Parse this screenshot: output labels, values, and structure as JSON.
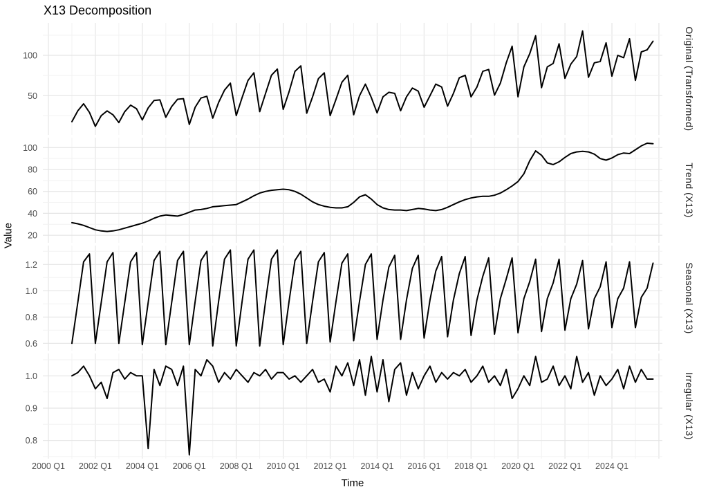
{
  "title": "X13 Decomposition",
  "chart_data": {
    "type": "line",
    "title": "X13 Decomposition",
    "xlabel": "Time",
    "ylabel": "Value",
    "x_unit": "quarterly",
    "x_start": "2001 Q1",
    "x_end": "2025 Q4",
    "grid": true,
    "legend": false,
    "line_color": "#000000",
    "gridline_color": "#e8e8e8",
    "tick_label_color": "#4d4d4d",
    "x_tick_labels": [
      "2000 Q1",
      "2002 Q1",
      "2004 Q1",
      "2006 Q1",
      "2008 Q1",
      "2010 Q1",
      "2012 Q1",
      "2014 Q1",
      "2016 Q1",
      "2018 Q1",
      "2020 Q1",
      "2022 Q1",
      "2024 Q1"
    ],
    "facets": [
      {
        "label": "Original (Transformed)",
        "scale": "log10",
        "y_ticks": [
          100,
          50
        ],
        "y_tick_labels": [
          "100",
          "50"
        ],
        "values": [
          32,
          38.5,
          43.5,
          37.5,
          29.5,
          35.5,
          38.5,
          36,
          31.5,
          38,
          42.5,
          40,
          33,
          40.5,
          46,
          46.5,
          34.5,
          41.5,
          47,
          47.5,
          30.5,
          41,
          48,
          49.5,
          34,
          44.5,
          55,
          62,
          35.5,
          48.5,
          65,
          74,
          38,
          52,
          71,
          79,
          39.5,
          53.5,
          76,
          83.5,
          37,
          49,
          67,
          74,
          35.5,
          47,
          63,
          71,
          36,
          50,
          61,
          48.5,
          37.2,
          49,
          53,
          52,
          38.6,
          49,
          57,
          54,
          41,
          50,
          61,
          58,
          41.8,
          52,
          68,
          71,
          49,
          58,
          76,
          78.5,
          50.5,
          62,
          88,
          117,
          49,
          82,
          103,
          140,
          57.4,
          82,
          87,
          122,
          67.3,
          86,
          98,
          152,
          68.6,
          88,
          90,
          124,
          69.9,
          100,
          96,
          133,
          65,
          106,
          110,
          127.5
        ]
      },
      {
        "label": "Trend (X13)",
        "scale": "linear",
        "y_ticks": [
          100,
          80,
          60,
          40,
          20
        ],
        "y_tick_labels": [
          "100",
          "80",
          "60",
          "40",
          "20"
        ],
        "values": [
          31.5,
          30.5,
          29,
          27,
          25,
          24,
          23.5,
          24,
          25,
          26.5,
          28,
          29.5,
          31,
          33,
          35.5,
          37.5,
          38.5,
          38,
          37.5,
          39,
          41,
          43,
          43.5,
          44.5,
          46,
          46.5,
          47,
          47.5,
          48,
          50.5,
          53,
          56,
          58.5,
          60,
          61,
          61.5,
          62,
          61.5,
          60,
          57.5,
          54,
          50.5,
          48,
          46.5,
          45.5,
          45,
          45,
          46,
          50,
          55,
          57,
          53,
          48,
          45,
          43.5,
          43,
          43,
          42.5,
          43.5,
          44.5,
          44,
          43,
          42.5,
          43.5,
          45.5,
          48,
          50.5,
          52.5,
          54,
          55,
          55.5,
          55.5,
          56.5,
          58.5,
          61.5,
          65,
          69,
          76,
          88,
          97,
          93,
          86,
          84.5,
          87,
          91,
          94.5,
          96,
          96.5,
          96,
          94,
          90,
          88.5,
          90.5,
          93.5,
          95,
          94.5,
          98,
          101.5,
          104,
          103.5
        ]
      },
      {
        "label": "Seasonal (X13)",
        "scale": "linear",
        "y_ticks": [
          1.2,
          1.0,
          0.8,
          0.6
        ],
        "y_tick_labels": [
          "1.2",
          "1.0",
          "0.8",
          "0.6"
        ],
        "values": [
          0.6,
          0.91,
          1.22,
          1.28,
          0.6,
          0.91,
          1.22,
          1.29,
          0.6,
          0.91,
          1.22,
          1.29,
          0.59,
          0.91,
          1.23,
          1.3,
          0.59,
          0.91,
          1.23,
          1.3,
          0.59,
          0.92,
          1.23,
          1.3,
          0.58,
          0.92,
          1.24,
          1.31,
          0.58,
          0.92,
          1.24,
          1.31,
          0.58,
          0.92,
          1.24,
          1.31,
          0.59,
          0.92,
          1.23,
          1.3,
          0.6,
          0.92,
          1.22,
          1.29,
          0.61,
          0.92,
          1.21,
          1.28,
          0.62,
          0.92,
          1.2,
          1.28,
          0.63,
          0.93,
          1.18,
          1.27,
          0.63,
          0.93,
          1.17,
          1.27,
          0.64,
          0.93,
          1.15,
          1.26,
          0.65,
          0.93,
          1.13,
          1.26,
          0.66,
          0.93,
          1.11,
          1.25,
          0.67,
          0.94,
          1.09,
          1.25,
          0.68,
          0.94,
          1.07,
          1.24,
          0.69,
          0.94,
          1.06,
          1.24,
          0.7,
          0.94,
          1.05,
          1.23,
          0.71,
          0.94,
          1.03,
          1.22,
          0.72,
          0.94,
          1.02,
          1.22,
          0.72,
          0.95,
          1.02,
          1.21
        ]
      },
      {
        "label": "Irregular (X13)",
        "scale": "linear",
        "y_ticks": [
          1.0,
          0.9,
          0.8
        ],
        "y_tick_labels": [
          "1.0",
          "0.9",
          "0.8"
        ],
        "values": [
          1.0,
          1.01,
          1.03,
          1.0,
          0.96,
          0.98,
          0.93,
          1.01,
          1.02,
          0.99,
          1.01,
          1.0,
          1.0,
          0.775,
          1.02,
          0.97,
          1.03,
          1.02,
          0.97,
          1.03,
          0.755,
          1.02,
          1.0,
          1.05,
          1.03,
          0.98,
          1.01,
          0.99,
          1.02,
          1.0,
          0.98,
          1.01,
          1.0,
          1.02,
          0.99,
          1.01,
          1.01,
          0.99,
          1.0,
          0.98,
          1.0,
          1.02,
          0.98,
          0.99,
          0.95,
          1.03,
          1.0,
          1.04,
          0.97,
          1.05,
          0.94,
          1.06,
          0.95,
          1.05,
          0.92,
          1.02,
          1.04,
          0.94,
          1.01,
          0.96,
          1.0,
          1.03,
          0.98,
          1.01,
          0.99,
          1.01,
          1.0,
          1.02,
          0.98,
          1.0,
          1.03,
          0.98,
          1.0,
          0.97,
          1.02,
          0.93,
          0.96,
          1.0,
          0.97,
          1.06,
          0.98,
          0.99,
          1.03,
          0.97,
          1.0,
          0.96,
          1.06,
          0.98,
          1.01,
          0.94,
          1.0,
          0.97,
          0.99,
          1.02,
          0.96,
          1.03,
          0.98,
          1.02,
          0.99,
          0.99
        ]
      }
    ]
  }
}
